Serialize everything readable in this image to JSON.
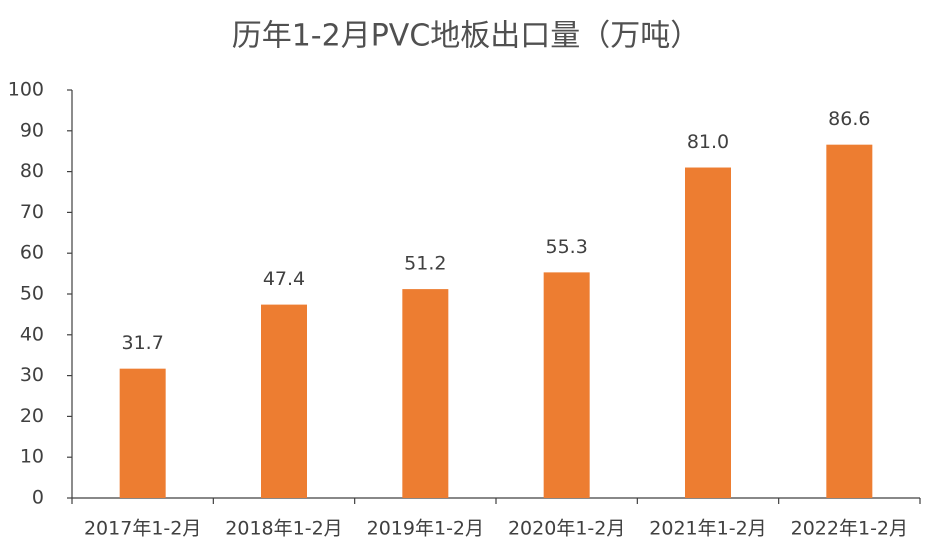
{
  "chart_data": {
    "type": "bar",
    "title": "历年1-2月PVC地板出口量（万吨）",
    "categories": [
      "2017年1-2月",
      "2018年1-2月",
      "2019年1-2月",
      "2020年1-2月",
      "2021年1-2月",
      "2022年1-2月"
    ],
    "values": [
      31.7,
      47.4,
      51.2,
      55.3,
      81.0,
      86.6
    ],
    "value_labels": [
      "31.7",
      "47.4",
      "51.2",
      "55.3",
      "81.0",
      "86.6"
    ],
    "color": "#ed7d31",
    "ylim": [
      0,
      100
    ],
    "yticks": [
      0,
      10,
      20,
      30,
      40,
      50,
      60,
      70,
      80,
      90,
      100
    ],
    "grid": false
  }
}
